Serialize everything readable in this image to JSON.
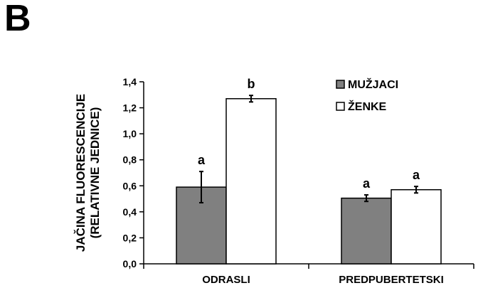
{
  "panel_label": "B",
  "chart_data": {
    "type": "bar",
    "categories": [
      "ODRASLI",
      "PREDPUBERTETSKI"
    ],
    "series": [
      {
        "name": "MUŽJACI",
        "color": "#808080",
        "values": [
          0.59,
          0.505
        ],
        "errors": [
          0.12,
          0.025
        ],
        "labels": [
          "a",
          "a"
        ]
      },
      {
        "name": "ŽENKE",
        "color": "#ffffff",
        "values": [
          1.27,
          0.57
        ],
        "errors": [
          0.025,
          0.025
        ],
        "labels": [
          "b",
          "a"
        ]
      }
    ],
    "ylabel_line1": "JAČINA FLUORESCENCIJE",
    "ylabel_line2": "(RELATIVNE JEDNICE)",
    "xlabel": "",
    "title": "",
    "ylim": [
      0,
      1.4
    ],
    "yticks": [
      "0,0",
      "0,2",
      "0,4",
      "0,6",
      "0,8",
      "1,0",
      "1,2",
      "1,4"
    ],
    "grid": false,
    "legend_position": "top-right"
  }
}
